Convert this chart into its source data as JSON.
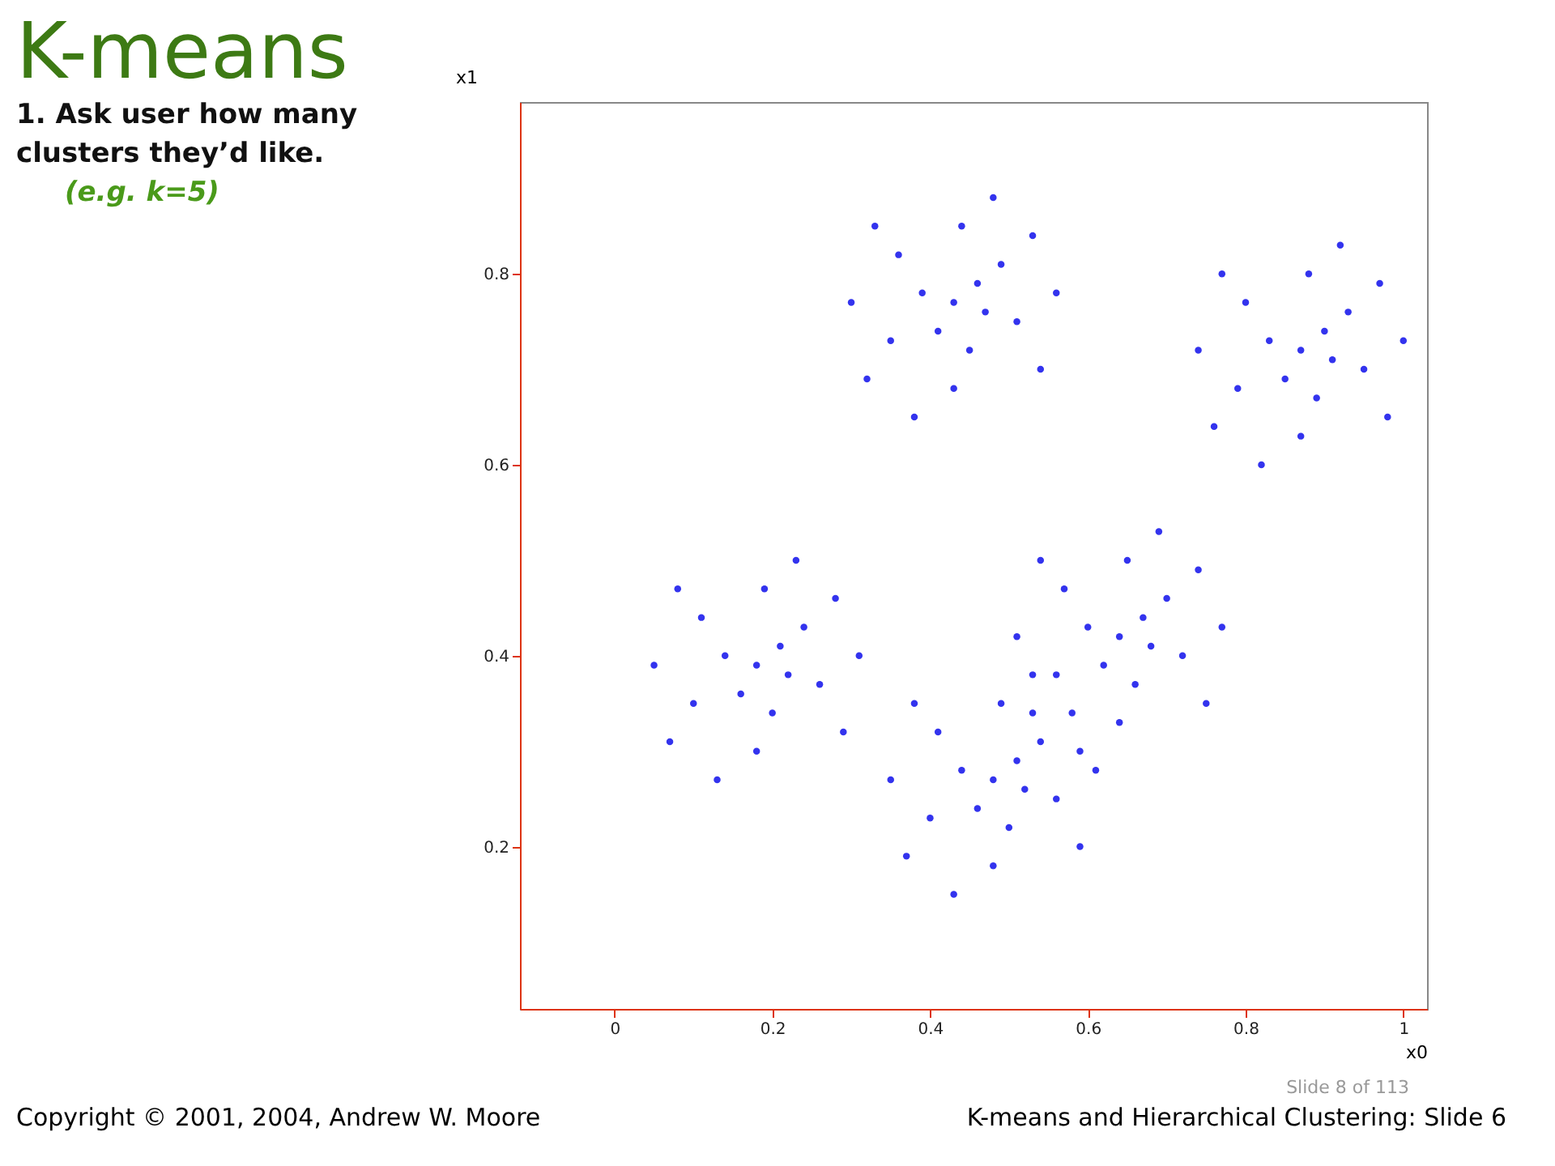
{
  "chart_data": {
    "type": "scatter",
    "title": "K-means",
    "xlabel": "x0",
    "ylabel": "x1",
    "annotations": [
      "1.  Ask user how many clusters they’d like.",
      "(e.g. k=5)",
      "Copyright © 2001, 2004, Andrew W. Moore",
      "Slide 8 of 113",
      "K-means and Hierarchical Clustering: Slide 6"
    ],
    "xlim": [
      -0.12,
      1.03
    ],
    "ylim": [
      0.03,
      0.98
    ],
    "xticks": [
      0,
      0.2,
      0.4,
      0.6,
      0.8,
      1
    ],
    "yticks": [
      0.2,
      0.4,
      0.6,
      0.8
    ],
    "grid": false,
    "marker": "circle",
    "series": [
      {
        "color": "#3333ee",
        "x": [
          0.43,
          0.46,
          0.39,
          0.45,
          0.41,
          0.49,
          0.36,
          0.51,
          0.35,
          0.44,
          0.43,
          0.53,
          0.33,
          0.54,
          0.32,
          0.48,
          0.38,
          0.56,
          0.3,
          0.47,
          0.87,
          0.9,
          0.83,
          0.89,
          0.85,
          0.93,
          0.8,
          0.95,
          0.79,
          0.88,
          0.87,
          0.97,
          0.77,
          0.98,
          0.76,
          0.92,
          0.82,
          1.0,
          0.74,
          0.91,
          0.18,
          0.21,
          0.14,
          0.2,
          0.16,
          0.24,
          0.11,
          0.26,
          0.1,
          0.19,
          0.18,
          0.28,
          0.08,
          0.29,
          0.07,
          0.23,
          0.13,
          0.31,
          0.05,
          0.22,
          0.64,
          0.67,
          0.6,
          0.66,
          0.62,
          0.7,
          0.57,
          0.72,
          0.56,
          0.65,
          0.64,
          0.74,
          0.54,
          0.75,
          0.53,
          0.69,
          0.59,
          0.77,
          0.51,
          0.68,
          0.48,
          0.51,
          0.44,
          0.5,
          0.46,
          0.54,
          0.41,
          0.56,
          0.4,
          0.49,
          0.48,
          0.58,
          0.38,
          0.59,
          0.37,
          0.53,
          0.43,
          0.61,
          0.35,
          0.52
        ],
        "values": [
          0.77,
          0.79,
          0.78,
          0.72,
          0.74,
          0.81,
          0.82,
          0.75,
          0.73,
          0.85,
          0.68,
          0.84,
          0.85,
          0.7,
          0.69,
          0.88,
          0.65,
          0.78,
          0.77,
          0.76,
          0.72,
          0.74,
          0.73,
          0.67,
          0.69,
          0.76,
          0.77,
          0.7,
          0.68,
          0.8,
          0.63,
          0.79,
          0.8,
          0.65,
          0.64,
          0.83,
          0.6,
          0.73,
          0.72,
          0.71,
          0.39,
          0.41,
          0.4,
          0.34,
          0.36,
          0.43,
          0.44,
          0.37,
          0.35,
          0.47,
          0.3,
          0.46,
          0.47,
          0.32,
          0.31,
          0.5,
          0.27,
          0.4,
          0.39,
          0.38,
          0.42,
          0.44,
          0.43,
          0.37,
          0.39,
          0.46,
          0.47,
          0.4,
          0.38,
          0.5,
          0.33,
          0.49,
          0.5,
          0.35,
          0.34,
          0.53,
          0.3,
          0.43,
          0.42,
          0.41,
          0.27,
          0.29,
          0.28,
          0.22,
          0.24,
          0.31,
          0.32,
          0.25,
          0.23,
          0.35,
          0.18,
          0.34,
          0.35,
          0.2,
          0.19,
          0.38,
          0.15,
          0.28,
          0.27,
          0.26
        ]
      }
    ]
  }
}
